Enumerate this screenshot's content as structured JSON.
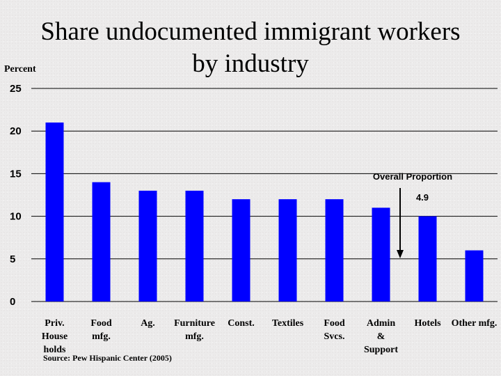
{
  "chart_data": {
    "type": "bar",
    "title_lines": [
      "Share undocumented immigrant workers",
      "by industry"
    ],
    "ylabel": "Percent",
    "xlabel": "",
    "ylim": [
      0,
      25
    ],
    "yticks": [
      0,
      5,
      10,
      15,
      20,
      25
    ],
    "grid": true,
    "categories": [
      [
        "Priv.",
        "House",
        "holds"
      ],
      [
        "Food",
        "mfg."
      ],
      [
        "Ag."
      ],
      [
        "Furniture",
        "mfg."
      ],
      [
        "Const."
      ],
      [
        "Textiles"
      ],
      [
        "Food",
        "Svcs."
      ],
      [
        "Admin",
        "&",
        "Support"
      ],
      [
        "Hotels"
      ],
      [
        "Other mfg."
      ]
    ],
    "values": [
      21,
      14,
      13,
      13,
      12,
      12,
      12,
      11,
      10,
      6
    ],
    "bar_color": "#0000ff",
    "annotation": {
      "label": "Overall Proportion",
      "value_label": "4.9",
      "value": 4.9
    },
    "source": "Source: Pew Hispanic Center (2005)"
  }
}
